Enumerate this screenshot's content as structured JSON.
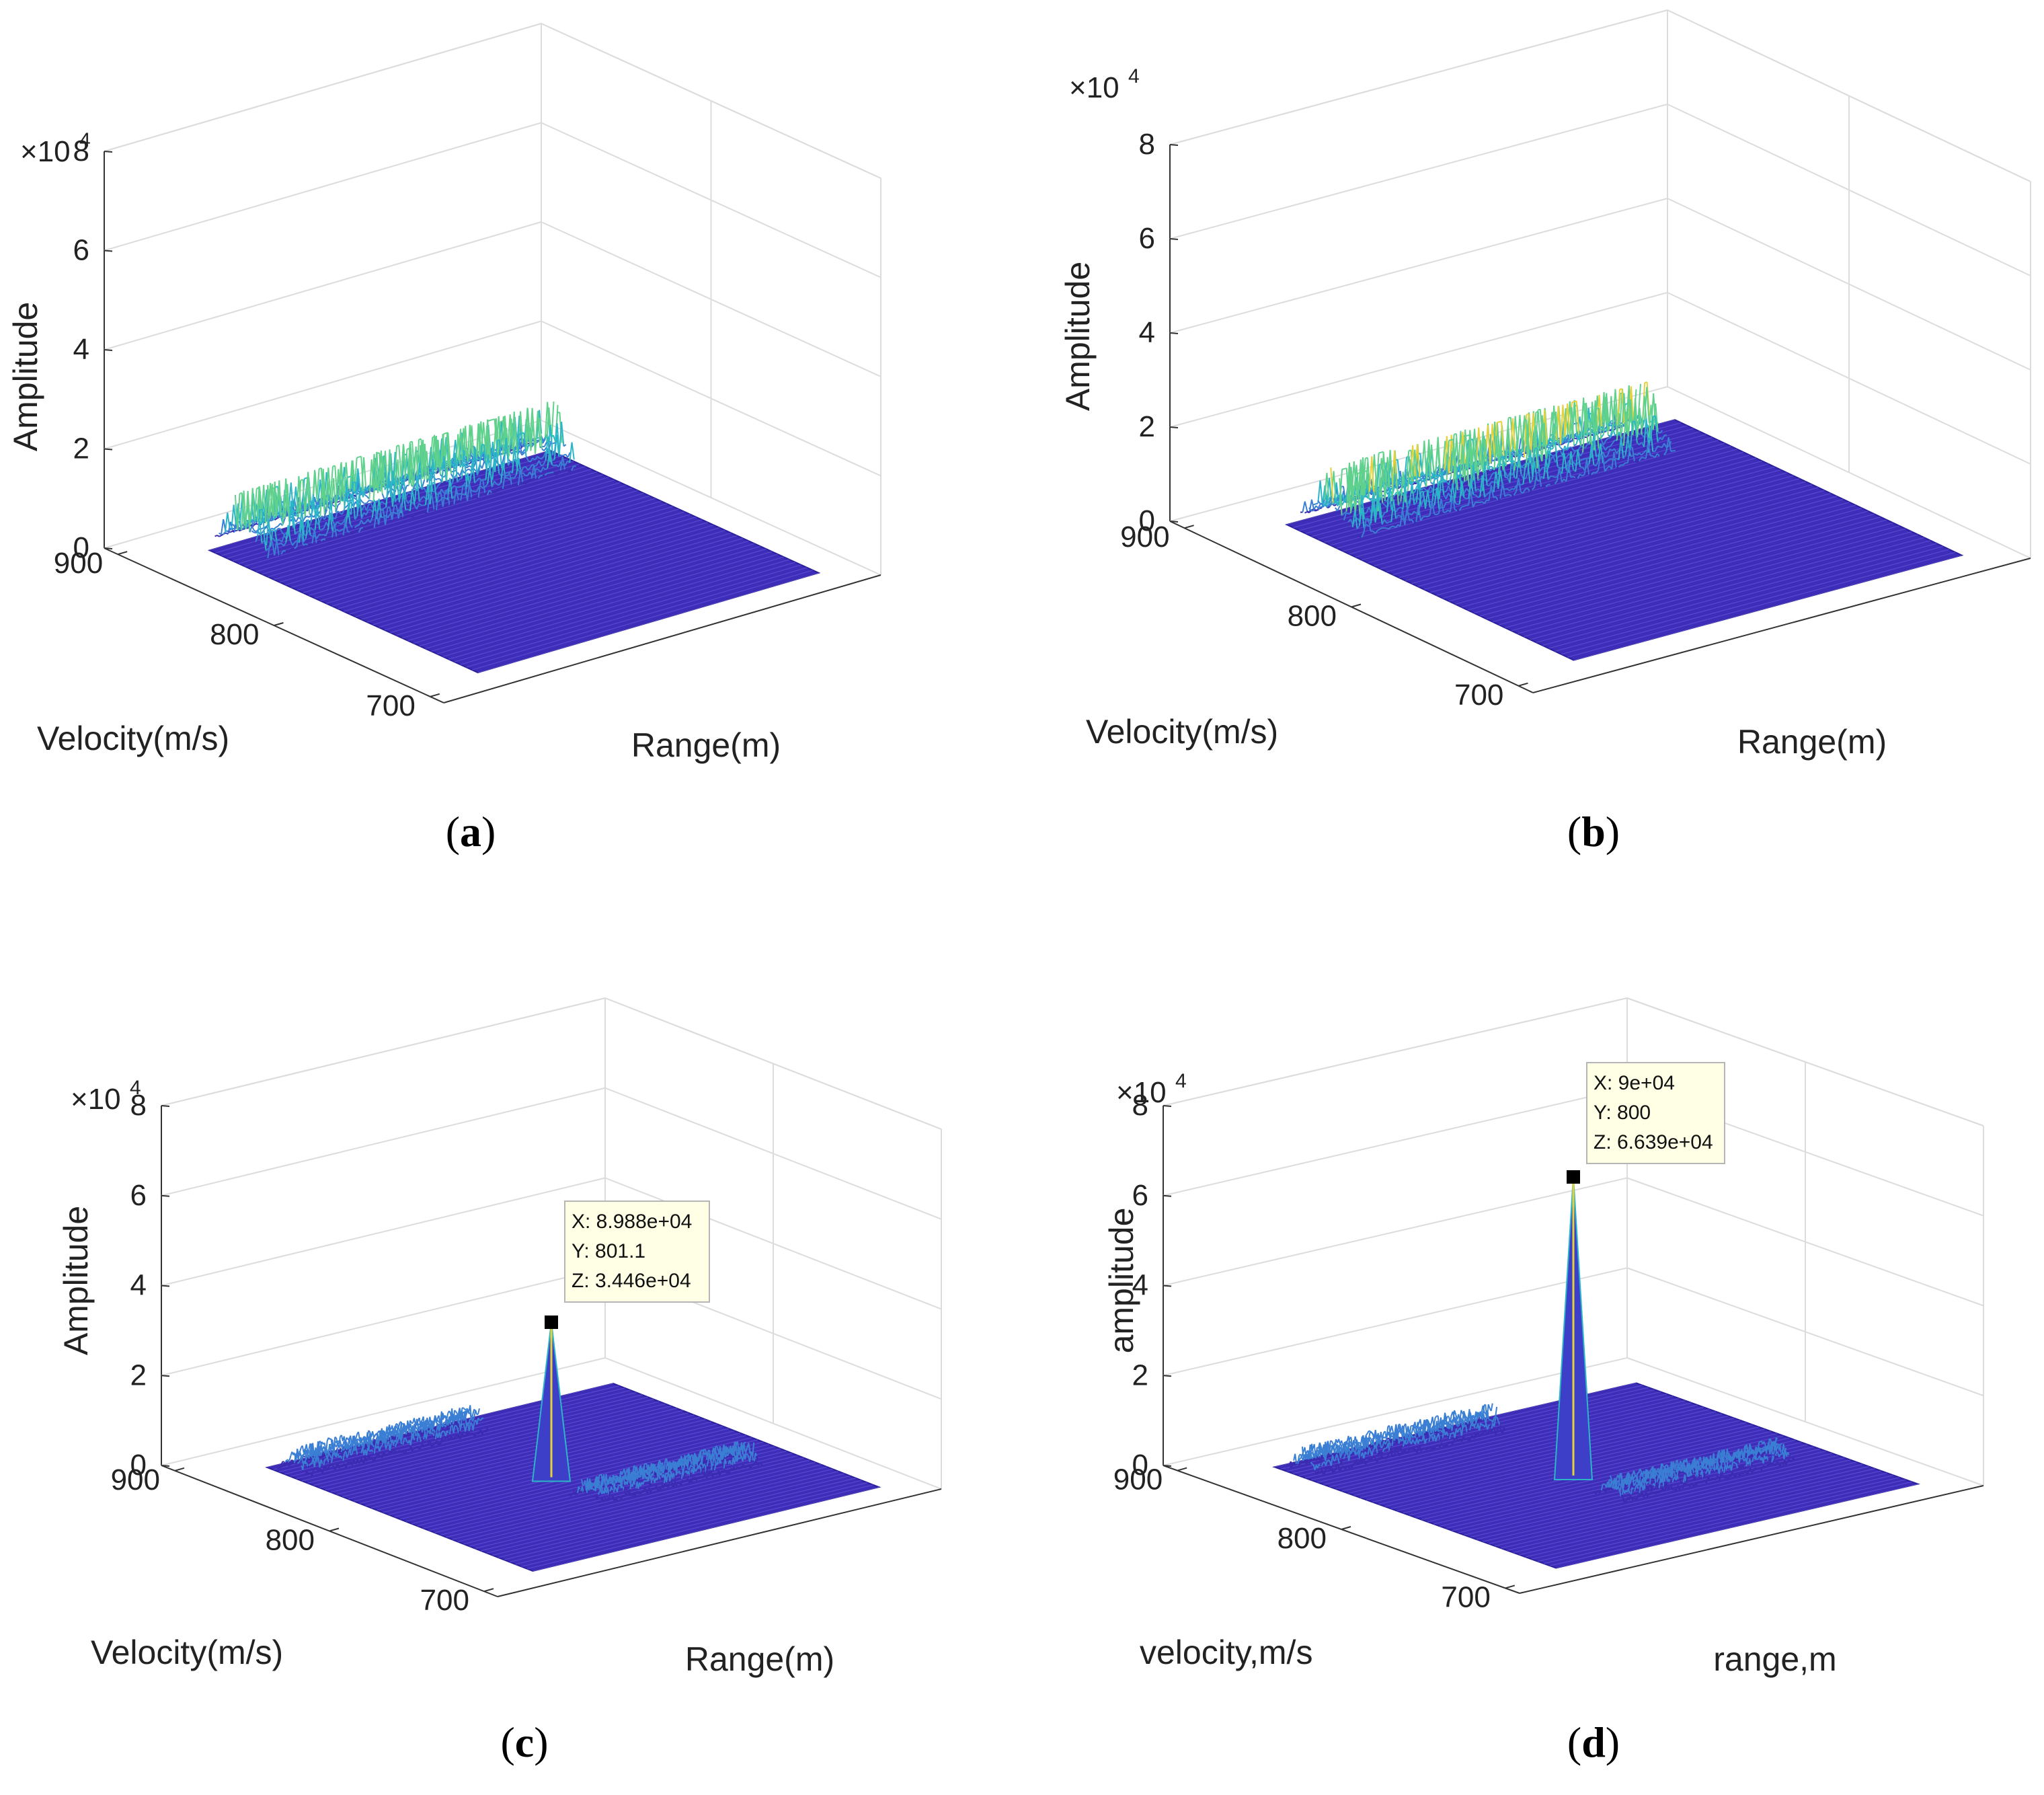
{
  "figure": {
    "panels": [
      {
        "id": "a",
        "caption_label": "a"
      },
      {
        "id": "b",
        "caption_label": "b"
      },
      {
        "id": "c",
        "caption_label": "c"
      },
      {
        "id": "d",
        "caption_label": "d"
      }
    ]
  },
  "chart_data": [
    {
      "type": "surface",
      "panel": "a",
      "zlabel": "Amplitude",
      "ylabel": "Velocity(m/s)",
      "xlabel": "Range(m)",
      "z_exponent_label": "×10",
      "z_exponent": "4",
      "zticks": [
        "0",
        "2",
        "4",
        "6",
        "8"
      ],
      "zlim": [
        0,
        80000
      ],
      "yticks": [
        "900",
        "800",
        "700"
      ],
      "ylim": [
        700,
        900
      ],
      "description_values": {
        "peak_amplitude": 20000,
        "ridge": "along range at velocity ~850-900, spread"
      }
    },
    {
      "type": "surface",
      "panel": "b",
      "zlabel": "Amplitude",
      "ylabel": "Velocity(m/s)",
      "xlabel": "Range(m)",
      "z_exponent_label": "×10",
      "z_exponent": "4",
      "zticks": [
        "0",
        "2",
        "4",
        "6",
        "8"
      ],
      "zlim": [
        0,
        80000
      ],
      "yticks": [
        "900",
        "800",
        "700"
      ],
      "ylim": [
        700,
        900
      ],
      "description_values": {
        "peak_amplitude": 20000,
        "ridge": "along range, spiky"
      }
    },
    {
      "type": "surface",
      "panel": "c",
      "zlabel": "Amplitude",
      "ylabel": "Velocity(m/s)",
      "xlabel": "Range(m)",
      "z_exponent_label": "×10",
      "z_exponent": "4",
      "zticks": [
        "0",
        "2",
        "4",
        "6",
        "8"
      ],
      "zlim": [
        0,
        80000
      ],
      "yticks": [
        "900",
        "800",
        "700"
      ],
      "ylim": [
        700,
        900
      ],
      "datatip": {
        "x_label": "X: 8.988e+04",
        "y_label": "Y: 801.1",
        "z_label": "Z: 3.446e+04"
      },
      "peak": {
        "x": 89880,
        "y": 801.1,
        "z": 34460
      }
    },
    {
      "type": "surface",
      "panel": "d",
      "zlabel": "amplitude",
      "ylabel": "velocity,m/s",
      "xlabel": "range,m",
      "z_exponent_label": "×10",
      "z_exponent": "4",
      "zticks": [
        "0",
        "2",
        "4",
        "6",
        "8"
      ],
      "zlim": [
        0,
        80000
      ],
      "yticks": [
        "900",
        "800",
        "700"
      ],
      "ylim": [
        700,
        900
      ],
      "datatip": {
        "x_label": "X: 9e+04",
        "y_label": "Y: 800",
        "z_label": "Z: 6.639e+04"
      },
      "peak": {
        "x": 90000,
        "y": 800,
        "z": 66390
      }
    }
  ]
}
